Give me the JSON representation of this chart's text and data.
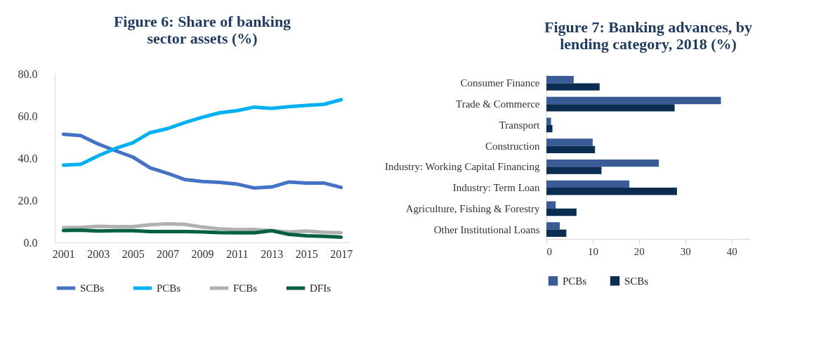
{
  "chart_data": [
    {
      "type": "line",
      "title": "Figure 6: Share of banking sector assets (%)",
      "x": [
        2001,
        2002,
        2003,
        2004,
        2005,
        2006,
        2007,
        2008,
        2009,
        2010,
        2011,
        2012,
        2013,
        2014,
        2015,
        2016,
        2017
      ],
      "xlim": [
        2000.5,
        2017.5
      ],
      "xticks": [
        2001,
        2003,
        2005,
        2007,
        2009,
        2011,
        2013,
        2015,
        2017
      ],
      "ylim": [
        0,
        80
      ],
      "yticks": [
        {
          "value": 0,
          "label": "0.0"
        },
        {
          "value": 20,
          "label": "20.0"
        },
        {
          "value": 40,
          "label": "40.0"
        },
        {
          "value": 60,
          "label": "60.0"
        },
        {
          "value": 80,
          "label": "80.0"
        }
      ],
      "legend": "bottom",
      "grid": false,
      "series": [
        {
          "name": "SCBs",
          "color": "#4472c4",
          "values": [
            51.3,
            50.7,
            46.7,
            43.5,
            40.5,
            35.4,
            32.8,
            29.8,
            28.9,
            28.5,
            27.7,
            25.8,
            26.3,
            28.7,
            28.2,
            28.2,
            26.1
          ]
        },
        {
          "name": "PCBs",
          "color": "#00b0f0",
          "values": [
            36.7,
            37.1,
            41.1,
            44.6,
            47.3,
            52.1,
            54.0,
            56.9,
            59.4,
            61.5,
            62.5,
            64.2,
            63.6,
            64.4,
            65.0,
            65.5,
            67.7
          ]
        },
        {
          "name": "FCBs",
          "color": "#b0b0b0",
          "values": [
            7.0,
            7.2,
            7.7,
            7.5,
            7.5,
            8.4,
            8.8,
            8.6,
            7.3,
            6.4,
            6.1,
            6.2,
            5.6,
            5.0,
            5.4,
            4.8,
            4.6
          ]
        },
        {
          "name": "DFIs",
          "color": "#006040",
          "values": [
            5.7,
            5.8,
            5.4,
            5.6,
            5.6,
            5.2,
            5.2,
            5.2,
            5.0,
            4.7,
            4.6,
            4.6,
            5.6,
            3.8,
            3.2,
            2.9,
            2.5
          ]
        }
      ]
    },
    {
      "type": "bar",
      "orientation": "horizontal",
      "title": "Figure 7: Banking advances, by lending category, 2018 (%)",
      "categories": [
        "Consumer Finance",
        "Trade & Commerce",
        "Transport",
        "Construction",
        "Industry: Working Capital Financing",
        "Industry: Term Loan",
        "Agriculture, Fishing & Forestry",
        "Other Institutional Loans"
      ],
      "xlim": [
        0,
        44
      ],
      "xticks": [
        0,
        10,
        20,
        30,
        40
      ],
      "legend": "bottom",
      "grid": false,
      "series": [
        {
          "name": "PCBs",
          "color": "#3a5c96",
          "values": [
            5.9,
            37.7,
            1.0,
            10.0,
            24.3,
            17.9,
            2.0,
            2.9
          ]
        },
        {
          "name": "SCBs",
          "color": "#0c2d52",
          "values": [
            11.5,
            27.7,
            1.3,
            10.5,
            11.9,
            28.2,
            6.5,
            4.3
          ]
        }
      ]
    }
  ]
}
